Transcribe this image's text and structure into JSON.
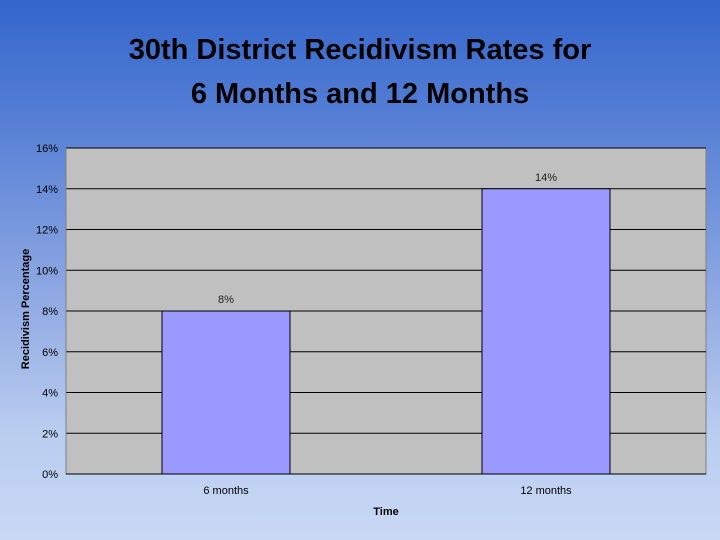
{
  "slide": {
    "title_line1": "30th District Recidivism Rates for",
    "title_line2": "6 Months and 12 Months"
  },
  "colors": {
    "plot_background": "#c0c0c0",
    "bar_fill": "#9999ff",
    "gridline": "#000000"
  },
  "chart_data": {
    "type": "bar",
    "title": "30th District Recidivism Rates for 6 Months and 12 Months",
    "categories": [
      "6 months",
      "12 months"
    ],
    "values": [
      8,
      14
    ],
    "data_labels": [
      "8%",
      "14%"
    ],
    "xlabel": "Time",
    "ylabel": "Recidivism Percentage",
    "ylim": [
      0,
      16
    ],
    "yticks": [
      0,
      2,
      4,
      6,
      8,
      10,
      12,
      14,
      16
    ],
    "ytick_labels": [
      "0%",
      "2%",
      "4%",
      "6%",
      "8%",
      "10%",
      "12%",
      "14%",
      "16%"
    ],
    "grid": true,
    "legend": "none"
  }
}
